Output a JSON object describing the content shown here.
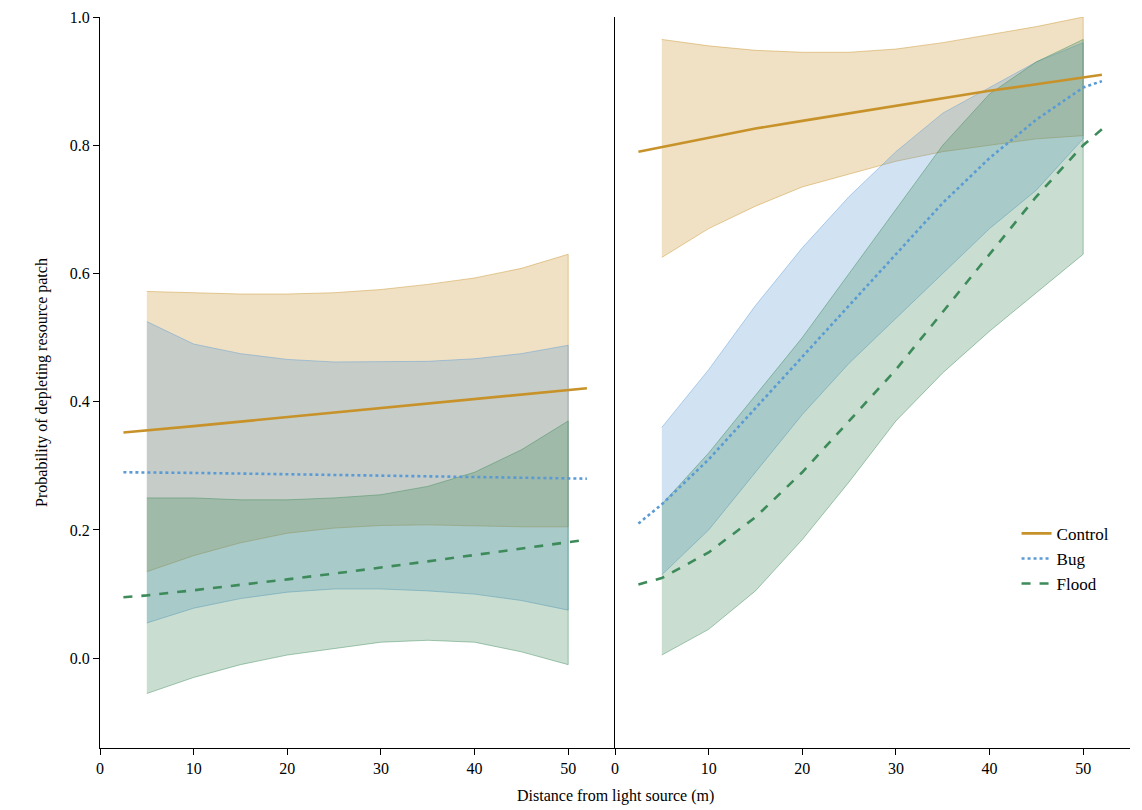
{
  "chart_data": {
    "type": "line",
    "x_label": "Distance from light source (m)",
    "y_label": "Probability of depleting resource patch",
    "xlim": [
      0,
      55
    ],
    "xticks": [
      0,
      10,
      20,
      30,
      40,
      50
    ],
    "ylim": [
      -0.14,
      1.0
    ],
    "yticks": [
      {
        "value": 0,
        "label": "0.0"
      },
      {
        "value": 0.2,
        "label": "0.2"
      },
      {
        "value": 0.4,
        "label": "0.4"
      },
      {
        "value": 0.6,
        "label": "0.6"
      },
      {
        "value": 0.8,
        "label": "0.8"
      },
      {
        "value": 1.0,
        "label": "1.0"
      }
    ],
    "grid": false,
    "legend": "lower right",
    "x": [
      2.5,
      5,
      10,
      15,
      20,
      25,
      30,
      35,
      40,
      45,
      50,
      52
    ],
    "panels": [
      {
        "tick_labels": true,
        "series": [
          {
            "name": "Control",
            "color": "#c8922a",
            "line_style": "solid",
            "values": [
              0.352,
              0.355,
              0.362,
              0.369,
              0.376,
              0.384,
              0.391,
              0.398,
              0.405,
              0.412,
              0.418,
              0.421
            ],
            "upper": [
              null,
              0.572,
              0.57,
              0.568,
              0.568,
              0.57,
              0.575,
              0.583,
              0.593,
              0.608,
              0.63,
              null
            ],
            "lower": [
              null,
              0.135,
              0.16,
              0.18,
              0.195,
              0.203,
              0.207,
              0.208,
              0.206,
              0.205,
              0.205,
              null
            ]
          },
          {
            "name": "Bug",
            "color": "#5b9bd5",
            "line_style": "dot",
            "values": [
              0.29,
              0.29,
              0.289,
              0.288,
              0.287,
              0.286,
              0.285,
              0.284,
              0.283,
              0.282,
              0.281,
              0.28
            ],
            "upper": [
              null,
              0.525,
              0.49,
              0.475,
              0.466,
              0.462,
              0.462,
              0.463,
              0.467,
              0.475,
              0.488,
              null
            ],
            "lower": [
              null,
              0.055,
              0.078,
              0.093,
              0.103,
              0.108,
              0.108,
              0.105,
              0.1,
              0.09,
              0.075,
              null
            ]
          },
          {
            "name": "Flood",
            "color": "#3d8a5a",
            "line_style": "dash",
            "values": [
              0.095,
              0.098,
              0.106,
              0.114,
              0.123,
              0.132,
              0.141,
              0.151,
              0.161,
              0.171,
              0.181,
              0.185
            ],
            "upper": [
              null,
              0.25,
              0.25,
              0.247,
              0.247,
              0.25,
              0.255,
              0.268,
              0.29,
              0.325,
              0.37,
              null
            ],
            "lower": [
              null,
              -0.055,
              -0.03,
              -0.01,
              0.005,
              0.015,
              0.025,
              0.028,
              0.025,
              0.01,
              -0.01,
              null
            ]
          }
        ]
      },
      {
        "tick_labels": "x",
        "series": [
          {
            "name": "Control",
            "color": "#c8922a",
            "line_style": "solid",
            "values": [
              0.79,
              0.797,
              0.812,
              0.826,
              0.838,
              0.85,
              0.862,
              0.874,
              0.885,
              0.895,
              0.905,
              0.91
            ],
            "upper": [
              null,
              0.965,
              0.955,
              0.948,
              0.945,
              0.945,
              0.95,
              0.96,
              0.972,
              0.985,
              1.0,
              null
            ],
            "lower": [
              null,
              0.625,
              0.67,
              0.705,
              0.735,
              0.755,
              0.775,
              0.79,
              0.8,
              0.81,
              0.815,
              null
            ]
          },
          {
            "name": "Bug",
            "color": "#5b9bd5",
            "line_style": "dot",
            "values": [
              0.21,
              0.24,
              0.31,
              0.39,
              0.47,
              0.55,
              0.63,
              0.71,
              0.78,
              0.84,
              0.89,
              0.9
            ],
            "upper": [
              null,
              0.36,
              0.45,
              0.55,
              0.64,
              0.72,
              0.79,
              0.85,
              0.89,
              0.93,
              0.96,
              null
            ],
            "lower": [
              null,
              0.13,
              0.2,
              0.29,
              0.38,
              0.46,
              0.53,
              0.6,
              0.67,
              0.73,
              0.81,
              null
            ]
          },
          {
            "name": "Flood",
            "color": "#3d8a5a",
            "line_style": "dash",
            "values": [
              0.115,
              0.125,
              0.165,
              0.22,
              0.29,
              0.37,
              0.45,
              0.54,
              0.63,
              0.72,
              0.8,
              0.825
            ],
            "upper": [
              null,
              0.24,
              0.32,
              0.41,
              0.5,
              0.6,
              0.7,
              0.8,
              0.88,
              0.93,
              0.965,
              null
            ],
            "lower": [
              null,
              0.005,
              0.045,
              0.105,
              0.185,
              0.275,
              0.37,
              0.445,
              0.51,
              0.57,
              0.63,
              null
            ]
          }
        ]
      }
    ]
  }
}
